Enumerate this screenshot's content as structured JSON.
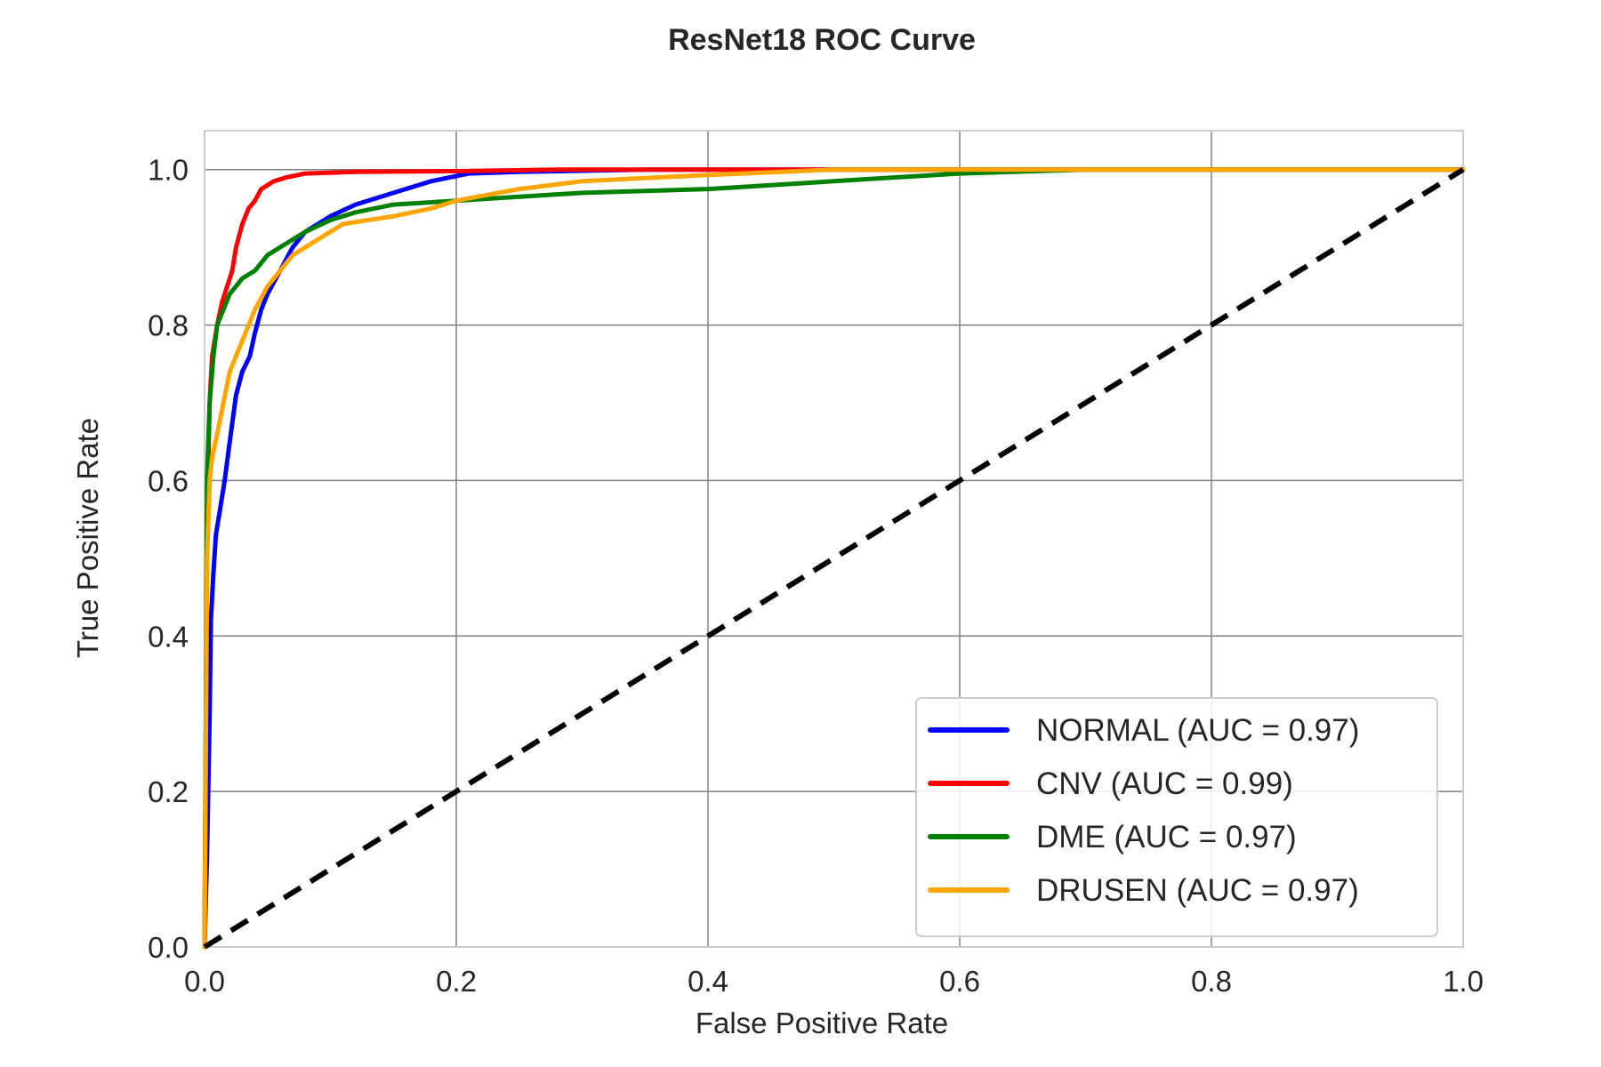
{
  "chart_data": {
    "type": "line",
    "title": "ResNet18 ROC Curve",
    "xlabel": "False Positive Rate",
    "ylabel": "True Positive Rate",
    "xlim": [
      0.0,
      1.0
    ],
    "ylim": [
      0.0,
      1.05
    ],
    "x_ticks": [
      "0.0",
      "0.2",
      "0.4",
      "0.6",
      "0.8",
      "1.0"
    ],
    "y_ticks": [
      "0.0",
      "0.2",
      "0.4",
      "0.6",
      "0.8",
      "1.0"
    ],
    "grid": true,
    "legend_position": "lower-right",
    "series": [
      {
        "name": "NORMAL (AUC = 0.97)",
        "color": "#0000ff",
        "x": [
          0.0,
          0.002,
          0.004,
          0.005,
          0.007,
          0.009,
          0.012,
          0.016,
          0.02,
          0.025,
          0.03,
          0.036,
          0.04,
          0.045,
          0.05,
          0.06,
          0.07,
          0.08,
          0.1,
          0.12,
          0.15,
          0.18,
          0.21,
          0.25,
          0.35,
          0.5,
          1.0
        ],
        "y": [
          0.0,
          0.12,
          0.3,
          0.42,
          0.48,
          0.53,
          0.56,
          0.6,
          0.65,
          0.71,
          0.74,
          0.76,
          0.79,
          0.82,
          0.84,
          0.87,
          0.9,
          0.92,
          0.94,
          0.955,
          0.97,
          0.985,
          0.995,
          0.997,
          1.0,
          1.0,
          1.0
        ]
      },
      {
        "name": "CNV (AUC = 0.99)",
        "color": "#ff0000",
        "x": [
          0.0,
          0.002,
          0.004,
          0.006,
          0.01,
          0.014,
          0.018,
          0.022,
          0.025,
          0.03,
          0.035,
          0.04,
          0.045,
          0.055,
          0.065,
          0.08,
          0.12,
          0.2,
          0.28,
          0.4,
          1.0
        ],
        "y": [
          0.0,
          0.55,
          0.7,
          0.76,
          0.8,
          0.83,
          0.85,
          0.87,
          0.9,
          0.93,
          0.95,
          0.96,
          0.975,
          0.985,
          0.99,
          0.995,
          0.997,
          0.998,
          1.0,
          1.0,
          1.0
        ]
      },
      {
        "name": "DME (AUC = 0.97)",
        "color": "#008000",
        "x": [
          0.0,
          0.002,
          0.004,
          0.007,
          0.01,
          0.015,
          0.02,
          0.025,
          0.03,
          0.04,
          0.05,
          0.06,
          0.08,
          0.1,
          0.12,
          0.15,
          0.2,
          0.25,
          0.3,
          0.4,
          0.45,
          0.5,
          0.6,
          0.7,
          1.0
        ],
        "y": [
          0.0,
          0.6,
          0.7,
          0.76,
          0.8,
          0.82,
          0.84,
          0.85,
          0.86,
          0.87,
          0.89,
          0.9,
          0.92,
          0.935,
          0.945,
          0.955,
          0.96,
          0.965,
          0.97,
          0.975,
          0.98,
          0.985,
          0.995,
          1.0,
          1.0
        ]
      },
      {
        "name": "DRUSEN (AUC = 0.97)",
        "color": "#ffa500",
        "x": [
          0.0,
          0.002,
          0.004,
          0.006,
          0.01,
          0.015,
          0.02,
          0.03,
          0.04,
          0.05,
          0.06,
          0.07,
          0.09,
          0.11,
          0.15,
          0.18,
          0.2,
          0.25,
          0.3,
          0.4,
          0.5,
          1.0
        ],
        "y": [
          0.0,
          0.5,
          0.6,
          0.63,
          0.66,
          0.7,
          0.74,
          0.78,
          0.82,
          0.85,
          0.87,
          0.89,
          0.91,
          0.93,
          0.94,
          0.95,
          0.96,
          0.975,
          0.985,
          0.993,
          1.0,
          1.0
        ]
      },
      {
        "color": "#000000",
        "dashed": true,
        "x": [
          0.0,
          1.0
        ],
        "y": [
          0.0,
          1.0
        ]
      }
    ]
  }
}
